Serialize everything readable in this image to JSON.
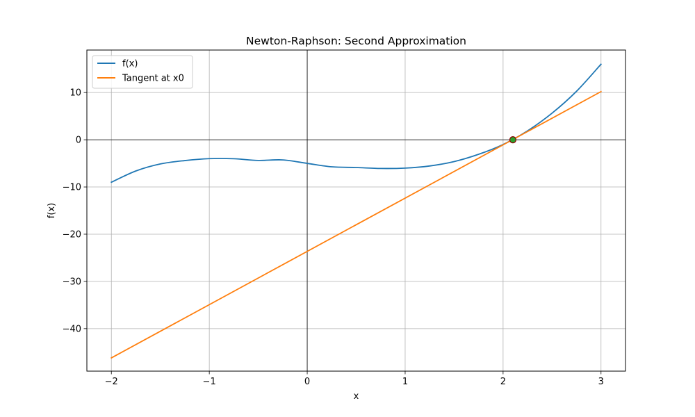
{
  "chart_data": {
    "type": "line",
    "title": "Newton-Raphson: Second Approximation",
    "xlabel": "x",
    "ylabel": "f(x)",
    "xlim": [
      -2.25,
      3.25
    ],
    "ylim": [
      -49,
      19
    ],
    "xticks": [
      -2,
      -1,
      0,
      1,
      2,
      3
    ],
    "yticks": [
      -40,
      -30,
      -20,
      -10,
      0,
      10
    ],
    "xtick_labels": [
      "−2",
      "−1",
      "0",
      "1",
      "2",
      "3"
    ],
    "ytick_labels": [
      "−40",
      "−30",
      "−20",
      "−10",
      "0",
      "10"
    ],
    "grid": true,
    "reference_lines": {
      "x": 0,
      "y": 0
    },
    "legend_position": "top-left",
    "series": [
      {
        "name": "f(x)",
        "color": "#1f77b4",
        "x": [
          -2.0,
          -1.75,
          -1.5,
          -1.25,
          -1.0,
          -0.75,
          -0.5,
          -0.25,
          0.0,
          0.25,
          0.5,
          0.75,
          1.0,
          1.25,
          1.5,
          1.75,
          2.0,
          2.25,
          2.5,
          2.75,
          3.0
        ],
        "y": [
          -9.0,
          -6.61,
          -5.12,
          -4.41,
          -4.0,
          -4.02,
          -4.38,
          -4.27,
          -5.0,
          -5.73,
          -5.88,
          -6.08,
          -6.0,
          -5.55,
          -4.62,
          -3.08,
          -1.0,
          1.89,
          5.63,
          10.27,
          16.0
        ]
      },
      {
        "name": "Tangent at x0",
        "color": "#ff7f0e",
        "x": [
          -2.0,
          3.0
        ],
        "y": [
          -46.2,
          10.2
        ]
      }
    ],
    "points": [
      {
        "x": 2.1,
        "y": 0.0,
        "fill": "#2ca02c",
        "stroke": "#8b0000"
      }
    ]
  }
}
